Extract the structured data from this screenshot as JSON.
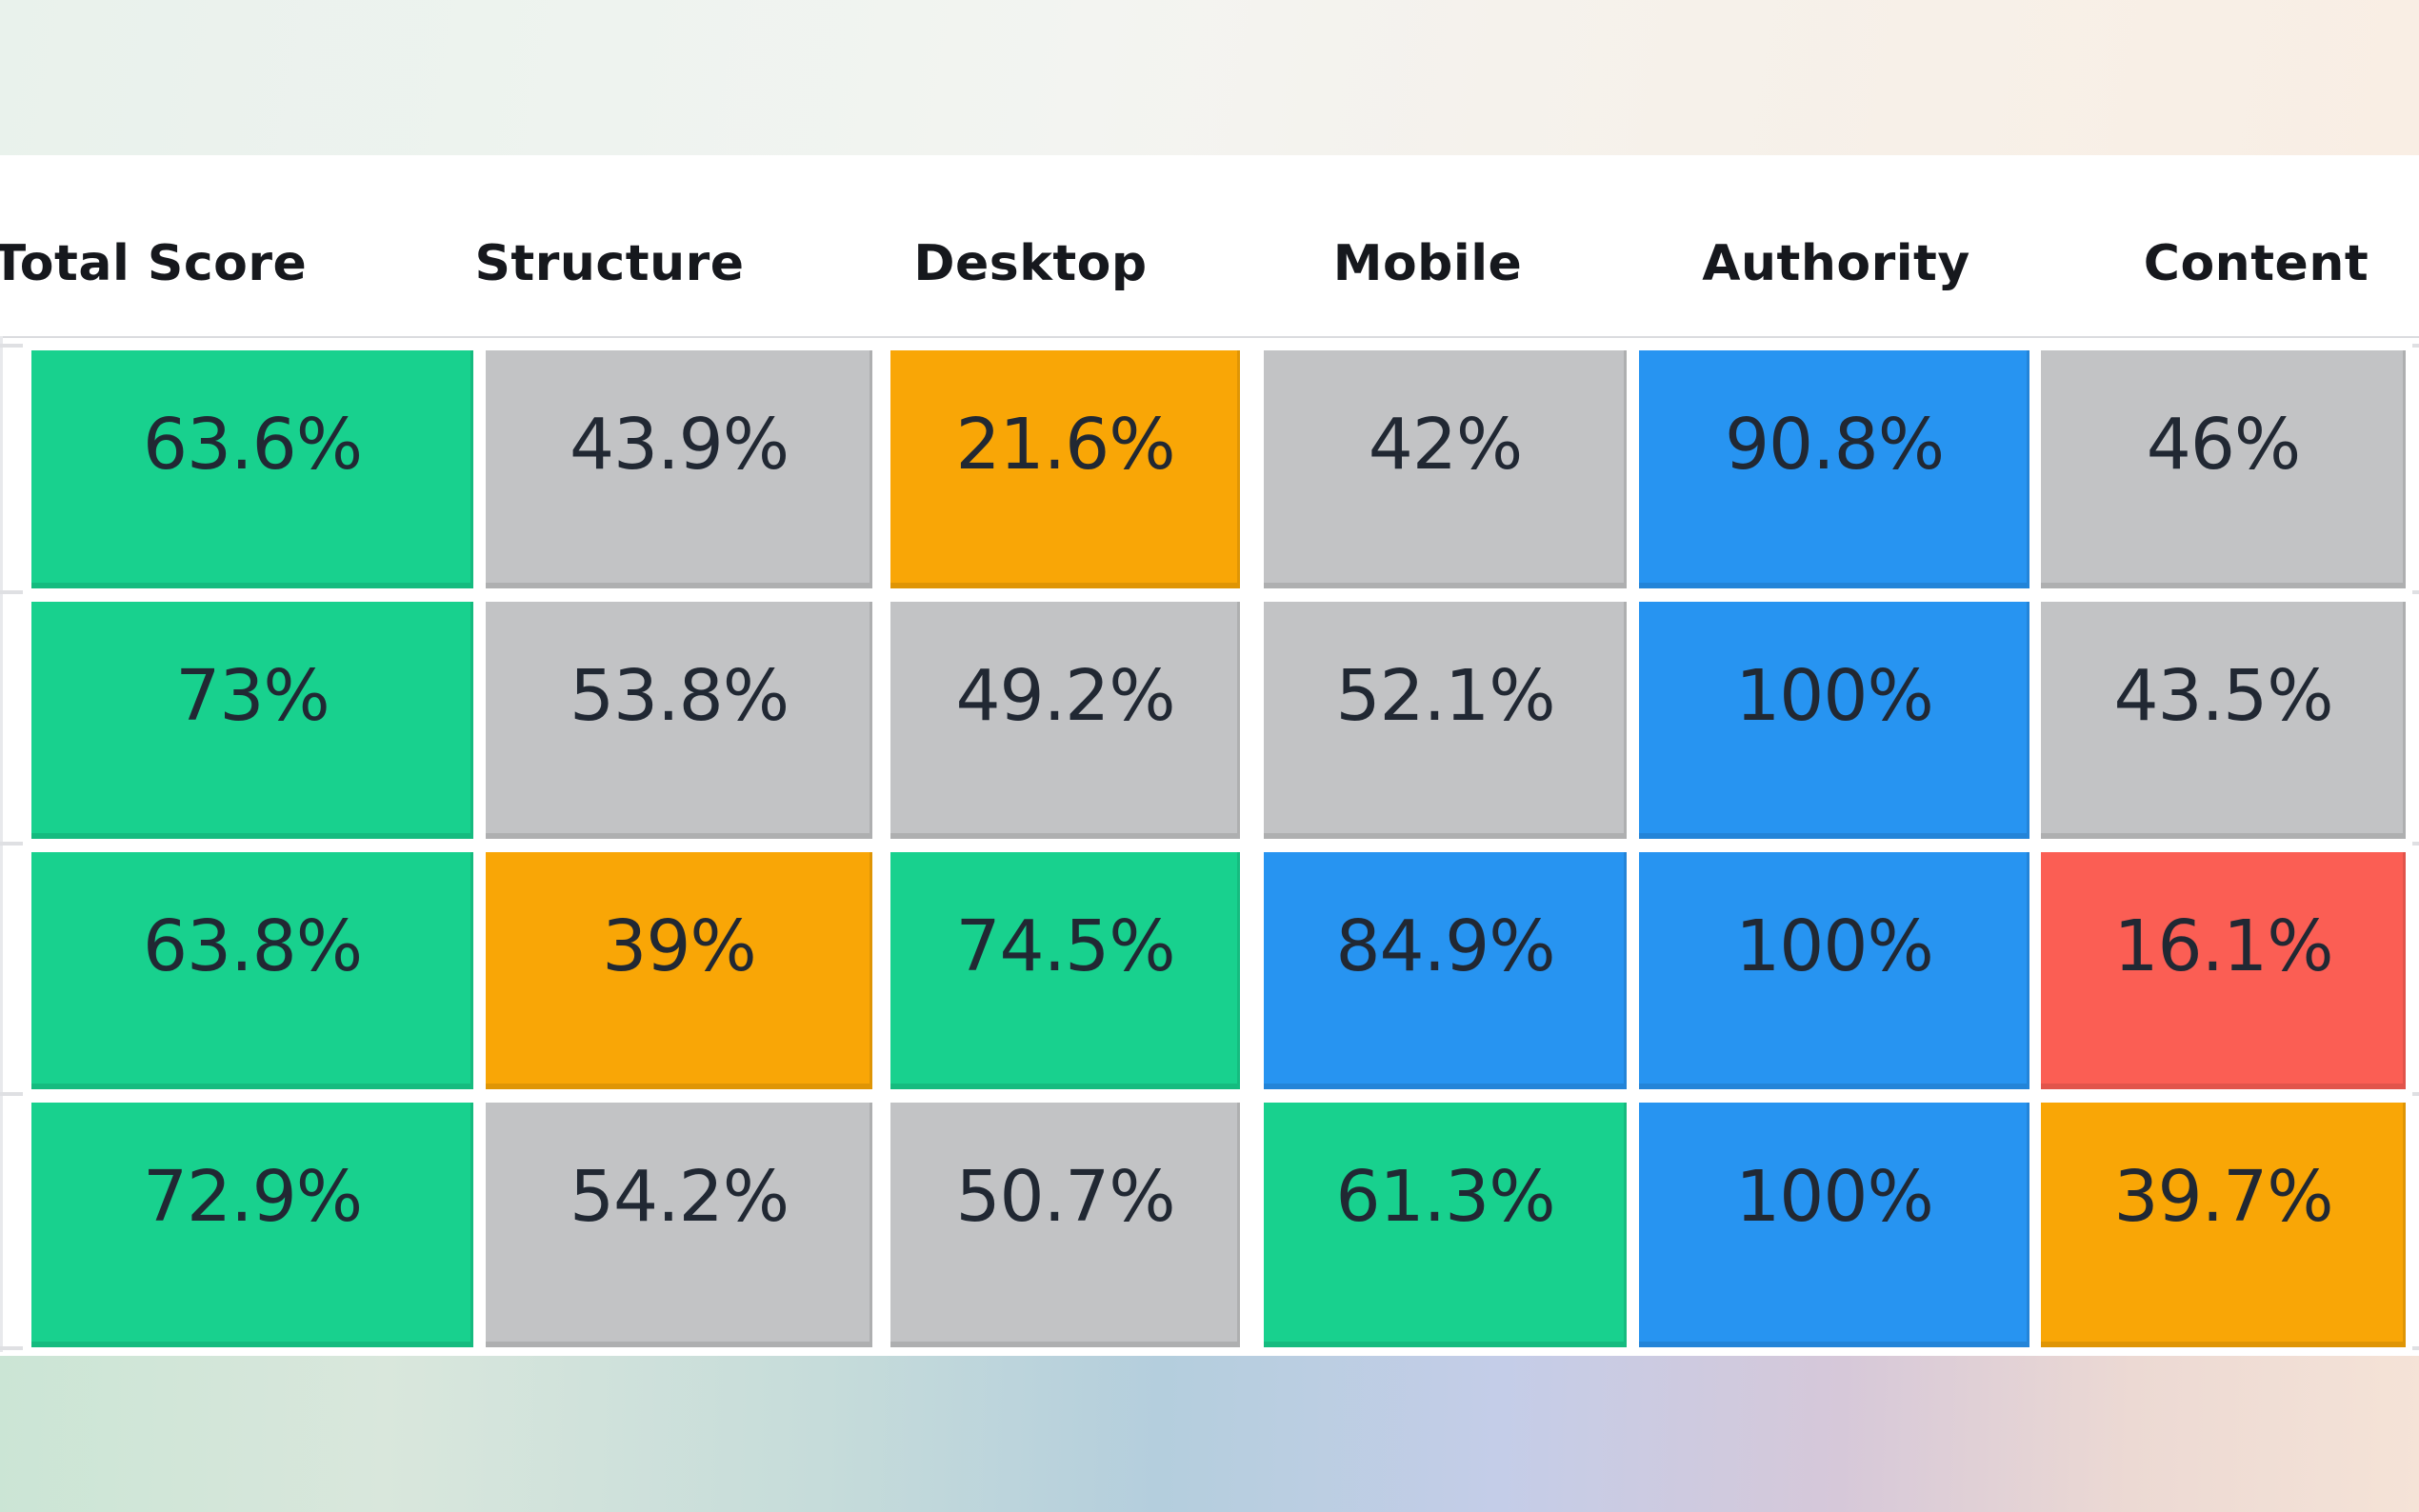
{
  "table": {
    "columns": [
      "Total Score",
      "Structure",
      "Desktop",
      "Mobile",
      "Authority",
      "Content"
    ],
    "rows": [
      {
        "cells": [
          {
            "value": "63.6%",
            "color": "green"
          },
          {
            "value": "43.9%",
            "color": "gray"
          },
          {
            "value": "21.6%",
            "color": "orange"
          },
          {
            "value": "42%",
            "color": "gray"
          },
          {
            "value": "90.8%",
            "color": "blue"
          },
          {
            "value": "46%",
            "color": "gray"
          }
        ]
      },
      {
        "cells": [
          {
            "value": "73%",
            "color": "green"
          },
          {
            "value": "53.8%",
            "color": "gray"
          },
          {
            "value": "49.2%",
            "color": "gray"
          },
          {
            "value": "52.1%",
            "color": "gray"
          },
          {
            "value": "100%",
            "color": "blue"
          },
          {
            "value": "43.5%",
            "color": "gray"
          }
        ]
      },
      {
        "cells": [
          {
            "value": "63.8%",
            "color": "green"
          },
          {
            "value": "39%",
            "color": "orange"
          },
          {
            "value": "74.5%",
            "color": "green"
          },
          {
            "value": "84.9%",
            "color": "blue"
          },
          {
            "value": "100%",
            "color": "blue"
          },
          {
            "value": "16.1%",
            "color": "red"
          }
        ]
      },
      {
        "cells": [
          {
            "value": "72.9%",
            "color": "green"
          },
          {
            "value": "54.2%",
            "color": "gray"
          },
          {
            "value": "50.7%",
            "color": "gray"
          },
          {
            "value": "61.3%",
            "color": "green"
          },
          {
            "value": "100%",
            "color": "blue"
          },
          {
            "value": "39.7%",
            "color": "orange"
          }
        ]
      }
    ]
  },
  "colors": {
    "green": "#18d18e",
    "gray": "#c2c3c5",
    "orange": "#f9a606",
    "blue": "#2794f1",
    "red": "#fb5e54"
  },
  "chart_data": {
    "type": "table",
    "columns": [
      "Total Score",
      "Structure",
      "Desktop",
      "Mobile",
      "Authority",
      "Content"
    ],
    "rows": [
      [
        "63.6%",
        "43.9%",
        "21.6%",
        "42%",
        "90.8%",
        "46%"
      ],
      [
        "73%",
        "53.8%",
        "49.2%",
        "52.1%",
        "100%",
        "43.5%"
      ],
      [
        "63.8%",
        "39%",
        "74.5%",
        "84.9%",
        "100%",
        "16.1%"
      ],
      [
        "72.9%",
        "54.2%",
        "50.7%",
        "61.3%",
        "100%",
        "39.7%"
      ]
    ]
  }
}
